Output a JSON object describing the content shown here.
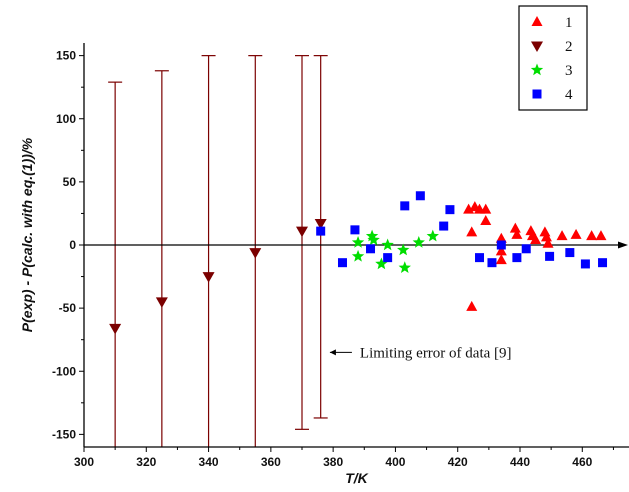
{
  "chart_data": {
    "type": "scatter",
    "xlabel": "T/K",
    "ylabel": "P(exp) - P(calc. with eq.(1))/%",
    "xlim": [
      300,
      475
    ],
    "ylim": [
      -160,
      160
    ],
    "xticks": [
      "300",
      "320",
      "340",
      "360",
      "380",
      "400",
      "420",
      "440",
      "460"
    ],
    "yticks": [
      "-150",
      "-100",
      "-50",
      "0",
      "50",
      "100",
      "150"
    ],
    "grid": false,
    "legend_position": "top-right",
    "series": [
      {
        "name": "1",
        "marker": "triangle-up",
        "color": "#ff0000",
        "points": [
          [
            423.5,
            28
          ],
          [
            424.5,
            10
          ],
          [
            424.5,
            -49
          ],
          [
            425.5,
            30
          ],
          [
            427,
            28
          ],
          [
            429,
            28
          ],
          [
            429,
            19
          ],
          [
            434,
            5
          ],
          [
            434,
            -5
          ],
          [
            434,
            -12
          ],
          [
            438.5,
            13
          ],
          [
            439,
            8
          ],
          [
            443.5,
            11
          ],
          [
            444,
            7
          ],
          [
            445,
            4
          ],
          [
            448,
            10
          ],
          [
            448.5,
            6
          ],
          [
            449,
            1
          ],
          [
            453.5,
            7
          ],
          [
            458,
            8
          ],
          [
            463,
            7
          ],
          [
            466,
            7
          ]
        ]
      },
      {
        "name": "2",
        "marker": "triangle-down",
        "color": "#7b0000",
        "points": [
          [
            310,
            -66
          ],
          [
            325,
            -45
          ],
          [
            340,
            -25
          ],
          [
            355,
            -6
          ],
          [
            370,
            11
          ],
          [
            376,
            17
          ]
        ],
        "error_low": [
          -160,
          -160,
          -160,
          -160,
          -146,
          -137
        ],
        "error_high": [
          129,
          138,
          150,
          150,
          150,
          150
        ]
      },
      {
        "name": "3",
        "marker": "star",
        "color": "#00dd00",
        "points": [
          [
            388,
            2
          ],
          [
            388,
            -9
          ],
          [
            392.5,
            7
          ],
          [
            393,
            4
          ],
          [
            395.5,
            -15
          ],
          [
            397.5,
            0
          ],
          [
            402.5,
            -4
          ],
          [
            403,
            -18
          ],
          [
            407.5,
            2
          ],
          [
            412,
            7
          ]
        ]
      },
      {
        "name": "4",
        "marker": "square",
        "color": "#0000ff",
        "points": [
          [
            376,
            11
          ],
          [
            383,
            -14
          ],
          [
            387,
            12
          ],
          [
            392,
            -3
          ],
          [
            397.5,
            -10
          ],
          [
            403,
            31
          ],
          [
            408,
            39
          ],
          [
            415.5,
            15
          ],
          [
            417.5,
            28
          ],
          [
            427,
            -10
          ],
          [
            431,
            -14
          ],
          [
            434,
            0
          ],
          [
            439,
            -10
          ],
          [
            442,
            -3
          ],
          [
            449.5,
            -9
          ],
          [
            456,
            -6
          ],
          [
            461,
            -15
          ],
          [
            466.5,
            -14
          ]
        ]
      }
    ],
    "annotation": {
      "text": "Limiting error of data [9]",
      "x": 378,
      "y": -85
    }
  }
}
